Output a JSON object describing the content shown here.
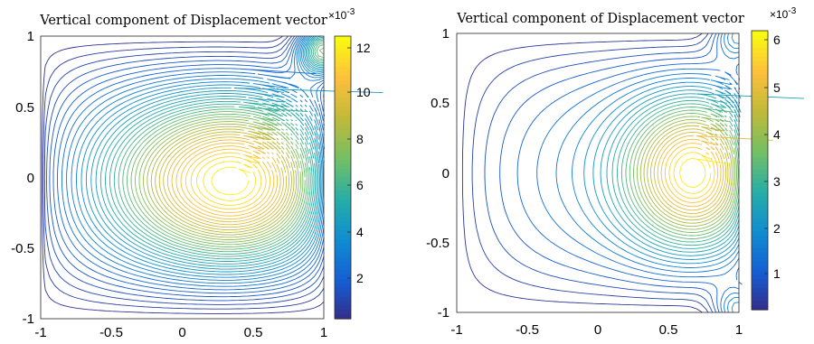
{
  "chart_data": [
    {
      "type": "contour",
      "title": "Vertical component of Displacement vector",
      "xlim": [
        -1,
        1
      ],
      "ylim": [
        -1,
        1
      ],
      "xticks": [
        "-1",
        "-0.5",
        "0",
        "0.5",
        "1"
      ],
      "yticks": [
        "1",
        "0.5",
        "0",
        "-0.5",
        "-1"
      ],
      "colorbar": {
        "colormap": "parula",
        "range": [
          0.0003,
          0.0123
        ],
        "ticks": [
          "12",
          "10",
          "8",
          "6",
          "4",
          "2"
        ],
        "multiplier": "×10",
        "multiplier_exponent": "-3"
      },
      "peak": {
        "x": 0.55,
        "y": -0.05,
        "value": 0.0123
      },
      "levels": 40
    },
    {
      "type": "contour",
      "title": "Vertical component of Displacement vector",
      "xlim": [
        -1,
        1
      ],
      "ylim": [
        -1,
        1
      ],
      "xticks": [
        "-1",
        "-0.5",
        "0",
        "0.5",
        "1"
      ],
      "yticks": [
        "1",
        "0.5",
        "0",
        "-0.5",
        "-1"
      ],
      "colorbar": {
        "colormap": "parula",
        "range": [
          0.0002,
          0.0061
        ],
        "ticks": [
          "6",
          "5",
          "4",
          "3",
          "2",
          "1"
        ],
        "multiplier": "×10",
        "multiplier_exponent": "-3"
      },
      "peak": {
        "x": 0.72,
        "y": 0.0,
        "value": 0.0061
      },
      "levels": 30
    }
  ]
}
